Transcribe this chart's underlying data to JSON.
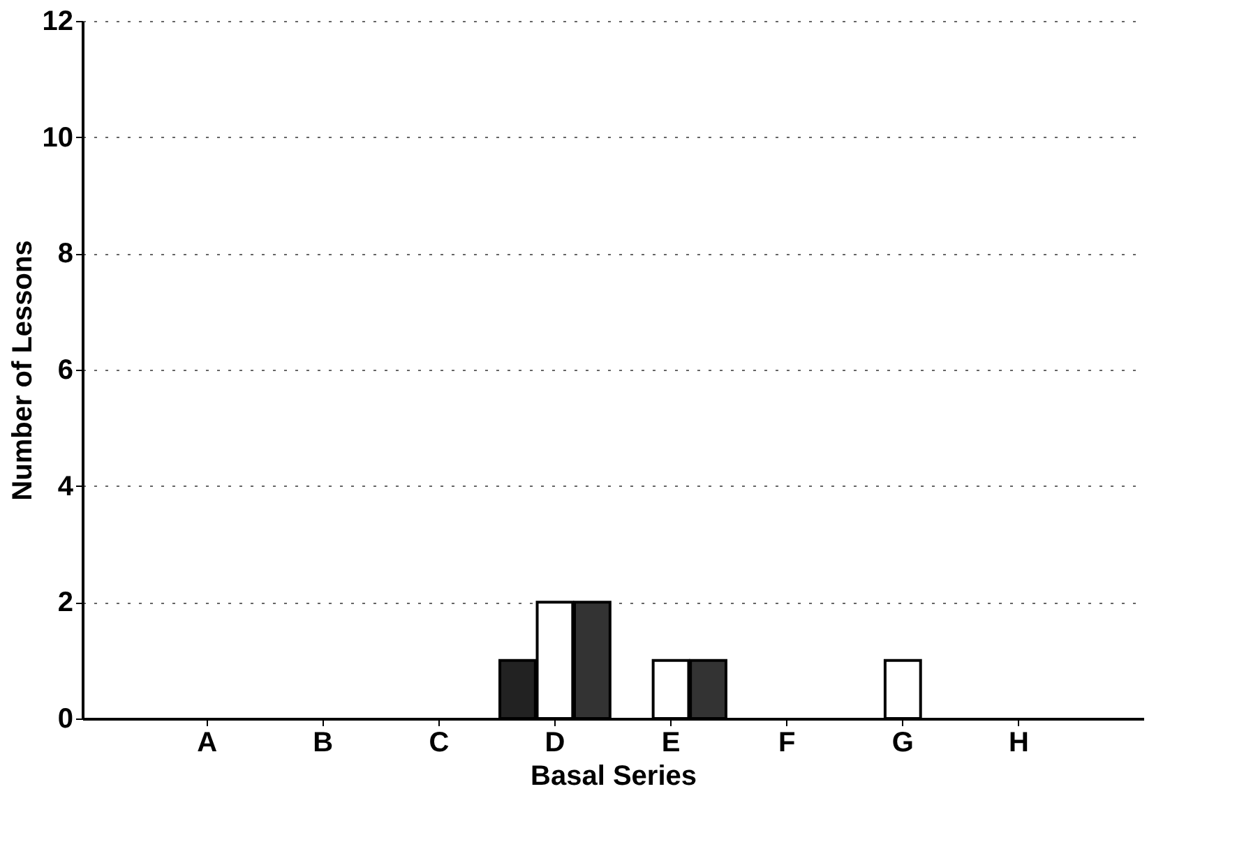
{
  "chart_data": {
    "type": "bar",
    "xlabel": "Basal Series",
    "ylabel": "Number of Lessons",
    "categories": [
      "A",
      "B",
      "C",
      "D",
      "E",
      "F",
      "G",
      "H"
    ],
    "series": [
      {
        "color": "#222222",
        "values": [
          0,
          0,
          0,
          1,
          0,
          0,
          0,
          0
        ]
      },
      {
        "color": "#ffffff",
        "values": [
          0,
          0,
          0,
          2,
          1,
          0,
          1,
          0
        ]
      },
      {
        "color": "#333333",
        "values": [
          0,
          0,
          0,
          2,
          1,
          0,
          0,
          0
        ]
      }
    ],
    "ylim": [
      0,
      12
    ],
    "yticks": [
      0,
      2,
      4,
      6,
      8,
      10,
      12
    ],
    "grid": "y",
    "legend": false
  }
}
